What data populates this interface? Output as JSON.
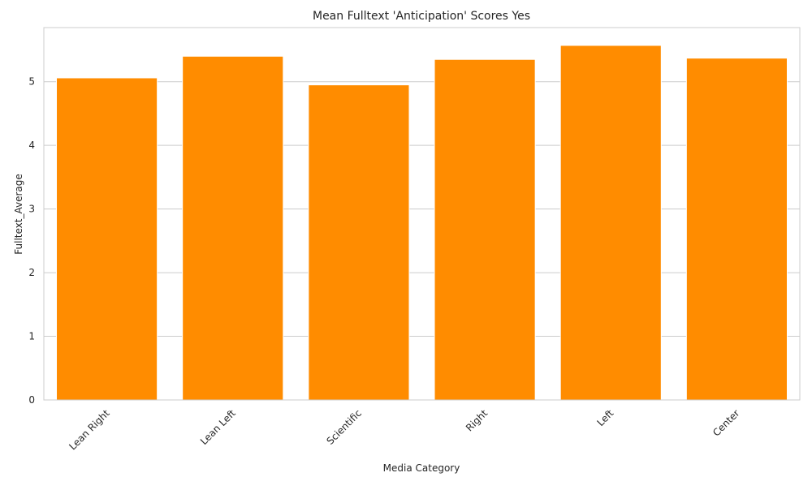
{
  "chart_data": {
    "type": "bar",
    "title": "Mean Fulltext 'Anticipation' Scores Yes",
    "xlabel": "Media Category",
    "ylabel": "Fulltext_Average",
    "categories": [
      "Lean Right",
      "Lean Left",
      "Scientific",
      "Right",
      "Left",
      "Center"
    ],
    "values": [
      5.06,
      5.4,
      4.95,
      5.35,
      5.57,
      5.37
    ],
    "ylim": [
      0,
      5.85
    ],
    "yticks": [
      0,
      1,
      2,
      3,
      4,
      5
    ],
    "grid": "horizontal",
    "bar_color": "#ff8c00",
    "xtick_rotation": 45
  }
}
